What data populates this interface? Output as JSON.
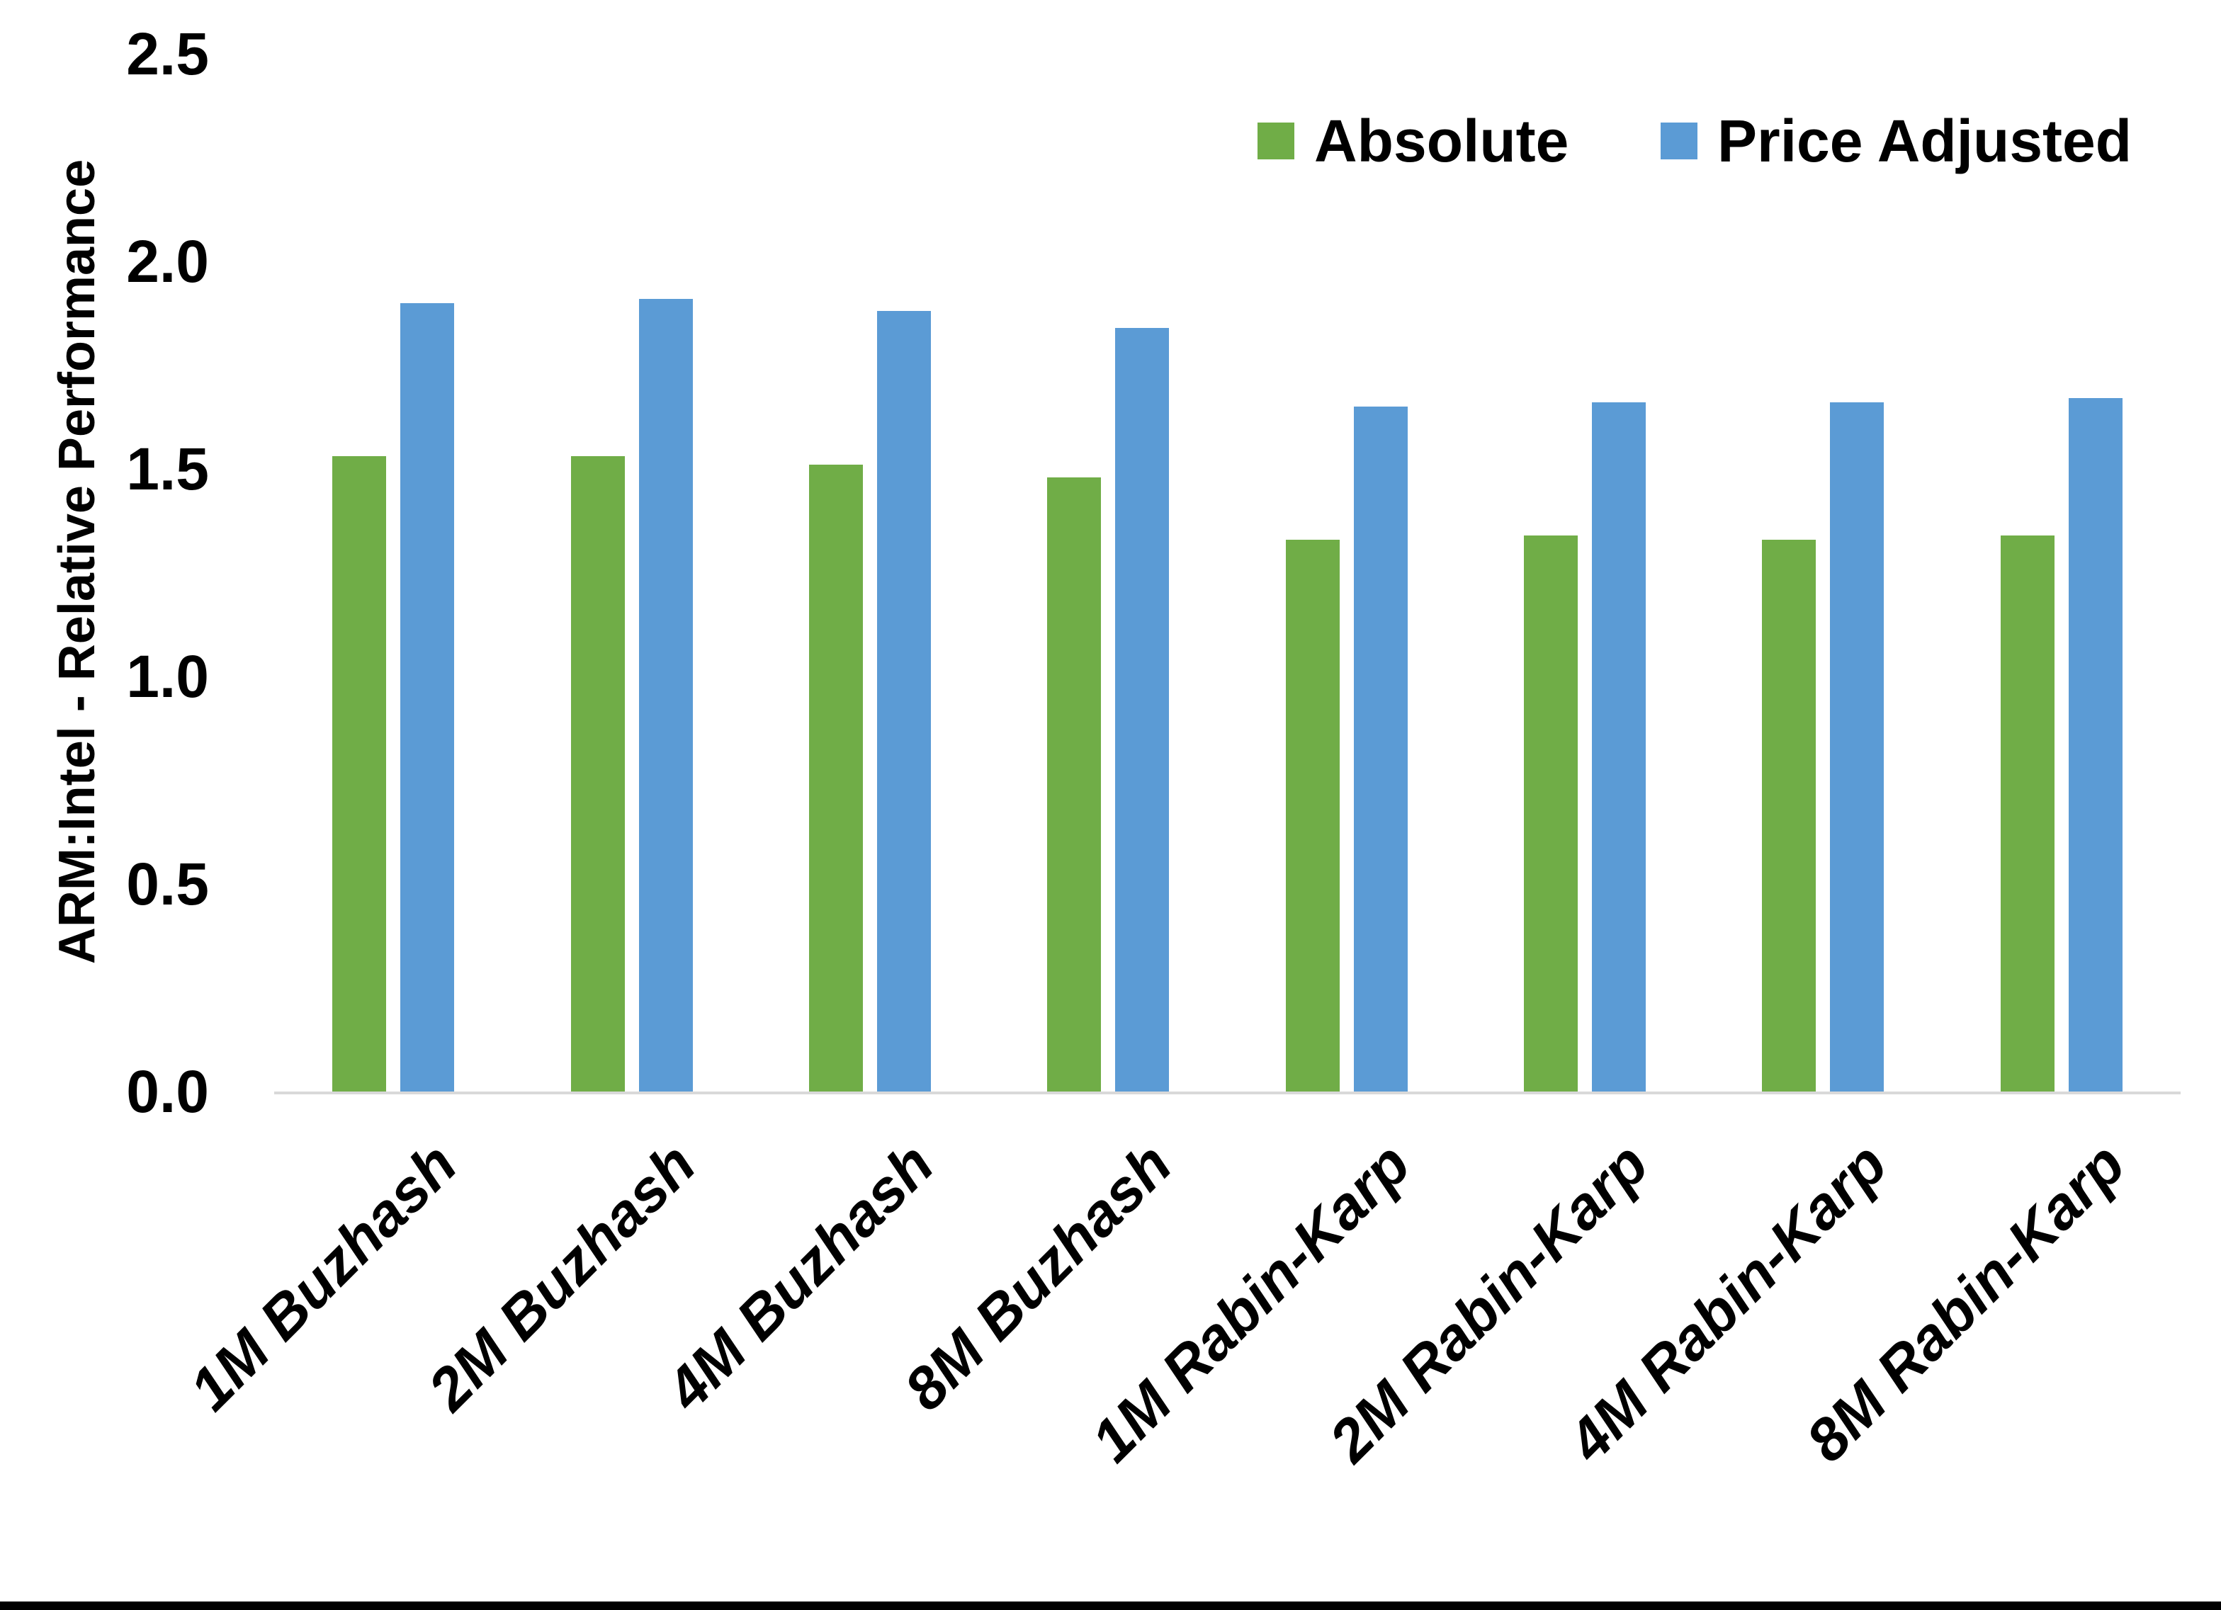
{
  "chart_data": {
    "type": "bar",
    "title": "",
    "xlabel": "",
    "ylabel": "ARM:Intel - Relative Performance",
    "ylim": [
      0,
      2.5
    ],
    "yticks": [
      "0.0",
      "0.5",
      "1.0",
      "1.5",
      "2.0",
      "2.5"
    ],
    "grid": false,
    "legend_position": "top-right",
    "categories": [
      "1M Buzhash",
      "2M Buzhash",
      "4M Buzhash",
      "8M Buzhash",
      "1M Rabin-Karp",
      "2M Rabin-Karp",
      "4M Rabin-Karp",
      "8M Rabin-Karp"
    ],
    "series": [
      {
        "name": "Absolute",
        "color": "#70AD47",
        "values": [
          1.53,
          1.53,
          1.51,
          1.48,
          1.33,
          1.34,
          1.33,
          1.34
        ]
      },
      {
        "name": "Price Adjusted",
        "color": "#5B9BD5",
        "values": [
          1.9,
          1.91,
          1.88,
          1.84,
          1.65,
          1.66,
          1.66,
          1.67
        ]
      }
    ]
  },
  "colors": {
    "axis_line": "#D9D9D9",
    "text": "#000000",
    "bottom_edge": "#000000"
  }
}
